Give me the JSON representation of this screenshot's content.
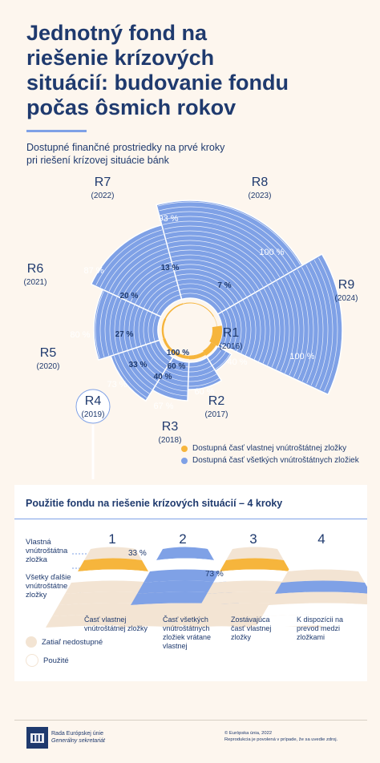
{
  "header": {
    "title_lines": [
      "Jednotný fond na",
      "riešenie krízových",
      "situácií: budovanie fondu",
      "počas ôsmich rokov"
    ],
    "subtitle_lines": [
      "Dostupné finančné prostriedky na prvé kroky",
      "pri riešení krízovej situácie bánk"
    ]
  },
  "colors": {
    "navy": "#1f3a6e",
    "blue": "#7fa1e6",
    "orange": "#f6b53c",
    "beige": "#f3e4d3",
    "background": "#fdf6ee"
  },
  "years": [
    {
      "label": "R1",
      "year": "(2016)",
      "own_pct": "100 %",
      "all_pct": "40 %"
    },
    {
      "label": "R2",
      "year": "(2017)",
      "own_pct": "60 %",
      "all_pct": "60 %"
    },
    {
      "label": "R3",
      "year": "(2018)",
      "own_pct": "40 %",
      "all_pct": "67 %"
    },
    {
      "label": "R4",
      "year": "(2019)",
      "own_pct": "33 %",
      "all_pct": "73 %"
    },
    {
      "label": "R5",
      "year": "(2020)",
      "own_pct": "27 %",
      "all_pct": "80 %"
    },
    {
      "label": "R6",
      "year": "(2021)",
      "own_pct": "20 %",
      "all_pct": "87 %"
    },
    {
      "label": "R7",
      "year": "(2022)",
      "own_pct": "13 %",
      "all_pct": "93 %"
    },
    {
      "label": "R8",
      "year": "(2023)",
      "own_pct": "7 %",
      "all_pct": "100 %"
    },
    {
      "label": "R9",
      "year": "(2024)",
      "own_pct": "",
      "all_pct": "100 %"
    }
  ],
  "legend": {
    "own": "Dostupná časť vlastnej vnútroštátnej zložky",
    "all": "Dostupná časť všetkých vnútroštátnych zložiek"
  },
  "steps": {
    "title": "Použitie fondu na riešenie krízových situácií – 4 kroky",
    "side_label_own": [
      "Vlastná",
      "vnútroštátna",
      "zložka"
    ],
    "side_label_all": [
      "Všetky ďalšie",
      "vnútroštátne",
      "zložky"
    ],
    "pct_step1": "33 %",
    "pct_step2": "73 %",
    "items": [
      {
        "number": "1",
        "caption": [
          "Časť vlastnej",
          "vnútroštátnej zložky"
        ]
      },
      {
        "number": "2",
        "caption": [
          "Časť všetkých",
          "vnútroštátnych",
          "zložiek vrátane",
          "vlastnej"
        ]
      },
      {
        "number": "3",
        "caption": [
          "Zostávajúca",
          "časť vlastnej",
          "zložky"
        ]
      },
      {
        "number": "4",
        "caption": [
          "K dispozícii na",
          "prevod medzi",
          "zložkami"
        ]
      }
    ],
    "key_unavailable": "Zatiaľ nedostupné",
    "key_used": "Použité"
  },
  "footer": {
    "org_line1": "Rada Európskej únie",
    "org_line2": "Generálny sekretariát",
    "copy_line1": "© Európska únia, 2022",
    "copy_line2": "Reprodukcia je povolená v prípade, že sa uvedie zdroj."
  }
}
